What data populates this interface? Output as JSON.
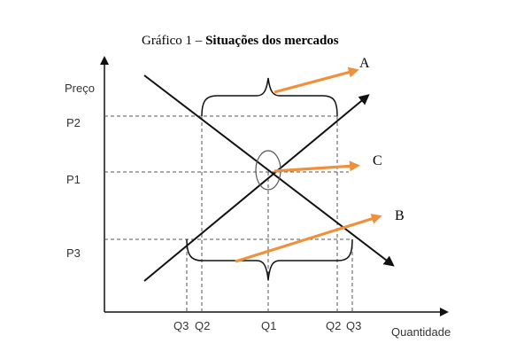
{
  "title": {
    "prefix": "Gráfico 1 – ",
    "bold": "Situações dos mercados"
  },
  "axes": {
    "y_label": "Preço",
    "x_label": "Quantidade"
  },
  "price_ticks": [
    "P2",
    "P1",
    "P3"
  ],
  "quantity_ticks": [
    "Q3",
    "Q2",
    "Q1",
    "Q2",
    "Q3"
  ],
  "markers": {
    "a": "A",
    "b": "B",
    "c": "C"
  },
  "colors": {
    "lines": "#111111",
    "guides": "#555555",
    "arrows": "#f0903a"
  }
}
